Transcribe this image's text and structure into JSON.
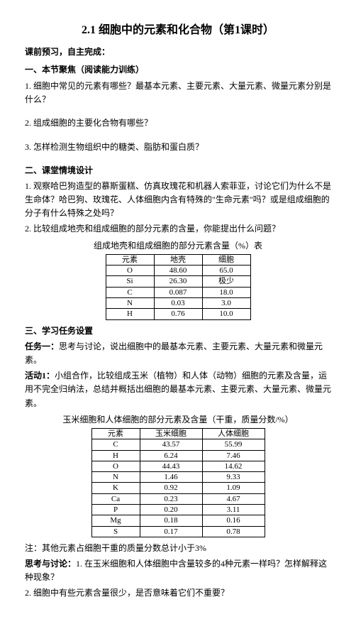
{
  "title": "2.1 细胞中的元素和化合物（第1课时）",
  "preclass": {
    "head": "课前预习，自主完成：",
    "s1_head": "一、本节聚焦（阅读能力训练）",
    "q1": "1. 细胞中常见的元素有哪些？最基本元素、主要元素、大量元素、微量元素分别是什么？",
    "q2": "2. 组成细胞的主要化合物有哪些？",
    "q3": "3. 怎样检测生物组织中的糖类、脂肪和蛋白质？"
  },
  "s2": {
    "head": "二、课堂情境设计",
    "p1": "1. 观察哈巴狗造型的慕斯蛋糕、仿真玫瑰花和机器人索菲亚，讨论它们为什么不是生命体？哈巴狗、玫瑰花、人体细胞内含有特殊的\"生命元素\"吗？或是组成细胞的分子有什么特殊之处吗？",
    "p2": "2. 比较组成地壳和组成细胞的部分元素的含量，你能提出什么问题？",
    "table1_caption": "组成地壳和组成细胞的部分元素含量（%）表",
    "table1": {
      "headers": [
        "元素",
        "地壳",
        "细胞"
      ],
      "rows": [
        [
          "O",
          "48.60",
          "65.0"
        ],
        [
          "Si",
          "26.30",
          "极少"
        ],
        [
          "C",
          "0.087",
          "18.0"
        ],
        [
          "N",
          "0.03",
          "3.0"
        ],
        [
          "H",
          "0.76",
          "10.0"
        ]
      ]
    }
  },
  "s3": {
    "head": "三、学习任务设置",
    "task1": "任务一：思考与讨论，说出细胞中的最基本元素、主要元素、大量元素和微量元素。",
    "act1_label": "活动1：",
    "act1": "小组合作，比较组成玉米（植物）和人体（动物）细胞的元素及含量，运用不完全归纳法，总结并概括出细胞的最基本元素、主要元素、大量元素、微量元素。",
    "table2_caption": "玉米细胞和人体细胞的部分元素及含量（干重，质量分数/%）",
    "table2": {
      "headers": [
        "元素",
        "玉米细胞",
        "人体细胞"
      ],
      "rows": [
        [
          "C",
          "43.57",
          "55.99"
        ],
        [
          "H",
          "6.24",
          "7.46"
        ],
        [
          "O",
          "44.43",
          "14.62"
        ],
        [
          "N",
          "1.46",
          "9.33"
        ],
        [
          "K",
          "0.92",
          "1.09"
        ],
        [
          "Ca",
          "0.23",
          "4.67"
        ],
        [
          "P",
          "0.20",
          "3.11"
        ],
        [
          "Mg",
          "0.18",
          "0.16"
        ],
        [
          "S",
          "0.17",
          "0.78"
        ]
      ]
    },
    "note": "注：其他元素占细胞干重的质量分数总计小于3%",
    "discuss_label": "思考与讨论：",
    "discuss1": "1. 在玉米细胞和人体细胞中含量较多的4种元素一样吗？怎样解释这种现象？",
    "discuss2": "2. 细胞中有些元素含量很少，是否意味着它们不重要？"
  },
  "colors": {
    "text": "#000000",
    "bg": "#ffffff",
    "border": "#000000"
  }
}
